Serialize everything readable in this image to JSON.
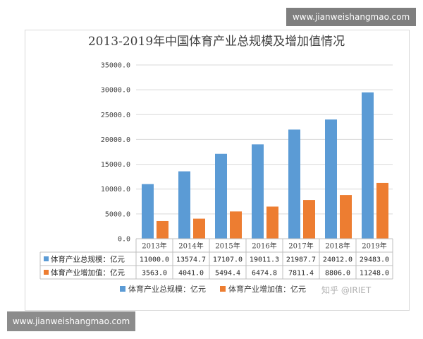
{
  "watermark_top": "www.jianweishangmao.com",
  "watermark_bottom": "www.jianweishangmao.com",
  "zhihu_watermark": "知乎 @IRIET",
  "colors": {
    "series1": "#5b9bd5",
    "series2": "#ed7d31"
  },
  "chart_data": {
    "type": "bar",
    "title": "2013-2019年中国体育产业总规模及增加值情况",
    "categories": [
      "2013年",
      "2014年",
      "2015年",
      "2016年",
      "2017年",
      "2018年",
      "2019年"
    ],
    "series": [
      {
        "name": "体育产业总规模：亿元",
        "values": [
          11000.0,
          13574.7,
          17107.0,
          19011.3,
          21987.7,
          24012.0,
          29483.0
        ],
        "labels": [
          "11000.0",
          "13574.7",
          "17107.0",
          "19011.3",
          "21987.7",
          "24012.0",
          "29483.0"
        ]
      },
      {
        "name": "体育产业增加值：亿元",
        "values": [
          3563.0,
          4041.0,
          5494.4,
          6474.8,
          7811.4,
          8806.0,
          11248.0
        ],
        "labels": [
          "3563.0",
          "4041.0",
          "5494.4",
          "6474.8",
          "7811.4",
          "8806.0",
          "11248.0"
        ]
      }
    ],
    "ylim": [
      0,
      35000
    ],
    "yticks": [
      "0.0",
      "5000.0",
      "10000.0",
      "15000.0",
      "20000.0",
      "25000.0",
      "30000.0",
      "35000.0"
    ],
    "grid": true,
    "legend_position": "bottom",
    "data_table": true
  }
}
